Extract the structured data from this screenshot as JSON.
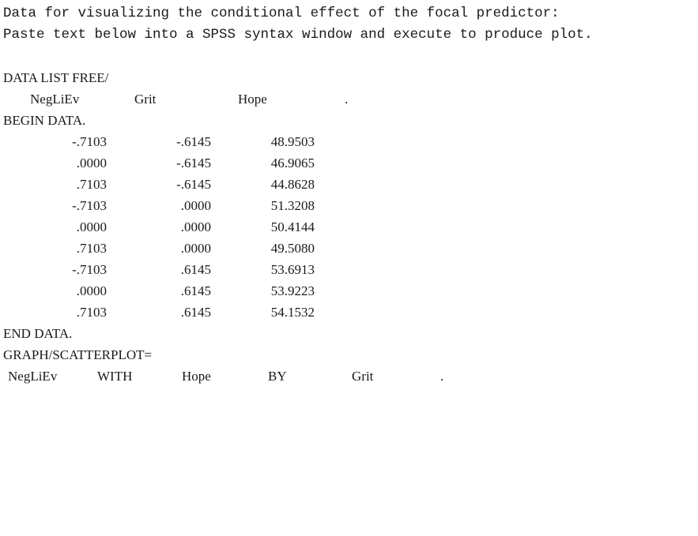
{
  "intro": {
    "line1": "Data for visualizing the conditional effect of the focal predictor:",
    "line2": "Paste text below into a SPSS syntax window and execute to produce plot."
  },
  "syntax": {
    "data_list": "DATA LIST FREE/",
    "columns": [
      "NegLiEv",
      "Grit",
      "Hope"
    ],
    "columns_terminator": ".",
    "begin_data": "BEGIN DATA.",
    "rows": [
      [
        "-.7103",
        "-.6145",
        "48.9503"
      ],
      [
        ".0000",
        "-.6145",
        "46.9065"
      ],
      [
        ".7103",
        "-.6145",
        "44.8628"
      ],
      [
        "-.7103",
        ".0000",
        "51.3208"
      ],
      [
        ".0000",
        ".0000",
        "50.4144"
      ],
      [
        ".7103",
        ".0000",
        "49.5080"
      ],
      [
        "-.7103",
        ".6145",
        "53.6913"
      ],
      [
        ".0000",
        ".6145",
        "53.9223"
      ],
      [
        ".7103",
        ".6145",
        "54.1532"
      ]
    ],
    "end_data": "END DATA.",
    "graph_command": "GRAPH/SCATTERPLOT=",
    "graph_spec": {
      "x_var": "NegLiEv",
      "with_keyword": "WITH",
      "y_var": "Hope",
      "by_keyword": "BY",
      "group_var": "Grit",
      "terminator": "."
    }
  }
}
